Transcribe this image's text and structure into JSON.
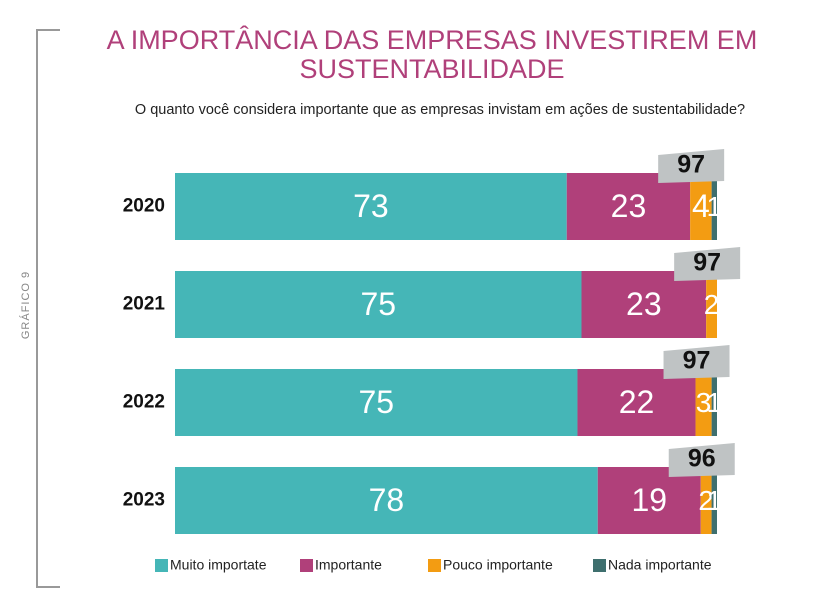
{
  "chart_data": {
    "type": "stacked-bar",
    "figure_label": "GRÁFICO 9",
    "title": [
      "A IMPORTÂNCIA DAS EMPRESAS INVESTIREM EM",
      "SUSTENTABILIDADE"
    ],
    "subtitle": "O quanto você considera importante que as empresas invistam em ações de sustentabilidade?",
    "categories": [
      "2020",
      "2021",
      "2022",
      "2023"
    ],
    "series": [
      {
        "name": "Muito importate",
        "color": "#45b6b7",
        "values": [
          73,
          75,
          75,
          78
        ]
      },
      {
        "name": "Importante",
        "color": "#b0407a",
        "values": [
          23,
          23,
          22,
          19
        ]
      },
      {
        "name": "Pouco importante",
        "color": "#f39c12",
        "values": [
          4,
          2,
          3,
          2
        ]
      },
      {
        "name": "Nada importante",
        "color": "#3e6f6e",
        "values": [
          1,
          null,
          1,
          1
        ]
      }
    ],
    "top_two_totals": [
      97,
      97,
      97,
      96
    ]
  }
}
